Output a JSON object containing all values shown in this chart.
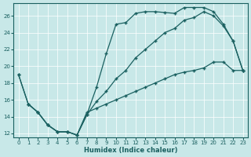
{
  "xlabel": "Humidex (Indice chaleur)",
  "bg_color": "#c8e8e8",
  "line_color": "#1a6060",
  "xlim": [
    -0.5,
    23.5
  ],
  "ylim": [
    11.5,
    27.5
  ],
  "xticks": [
    0,
    1,
    2,
    3,
    4,
    5,
    6,
    7,
    8,
    9,
    10,
    11,
    12,
    13,
    14,
    15,
    16,
    17,
    18,
    19,
    20,
    21,
    22,
    23
  ],
  "yticks": [
    12,
    14,
    16,
    18,
    20,
    22,
    24,
    26
  ],
  "line1_x": [
    0,
    1,
    2,
    3,
    4,
    5,
    6,
    7,
    8,
    9,
    10,
    11,
    12,
    13,
    14,
    15,
    16,
    17,
    18,
    19,
    20,
    21,
    22,
    23
  ],
  "line1_y": [
    19.0,
    15.5,
    14.5,
    13.0,
    12.2,
    12.2,
    11.8,
    14.2,
    17.5,
    21.5,
    25.0,
    25.2,
    26.3,
    26.5,
    26.5,
    26.4,
    26.3,
    27.0,
    27.0,
    27.0,
    26.5,
    25.0,
    23.0,
    19.5
  ],
  "line2_x": [
    0,
    1,
    2,
    3,
    4,
    5,
    6,
    7,
    8,
    9,
    10,
    11,
    12,
    13,
    14,
    15,
    16,
    17,
    18,
    19,
    20,
    21,
    22,
    23
  ],
  "line2_y": [
    19.0,
    15.5,
    14.5,
    13.0,
    12.2,
    12.2,
    11.8,
    14.2,
    15.8,
    17.0,
    18.5,
    19.5,
    21.0,
    22.0,
    23.0,
    24.0,
    24.5,
    25.5,
    25.8,
    26.5,
    26.0,
    24.8,
    23.0,
    19.5
  ],
  "line3_x": [
    1,
    2,
    3,
    4,
    5,
    6,
    7,
    8,
    9,
    10,
    11,
    12,
    13,
    14,
    15,
    16,
    17,
    18,
    19,
    20,
    21,
    22,
    23
  ],
  "line3_y": [
    15.5,
    14.5,
    13.0,
    12.2,
    12.2,
    11.8,
    14.5,
    15.0,
    15.5,
    16.0,
    16.5,
    17.0,
    17.5,
    18.0,
    18.5,
    19.0,
    19.3,
    19.5,
    19.8,
    20.5,
    20.5,
    19.5,
    19.5
  ]
}
